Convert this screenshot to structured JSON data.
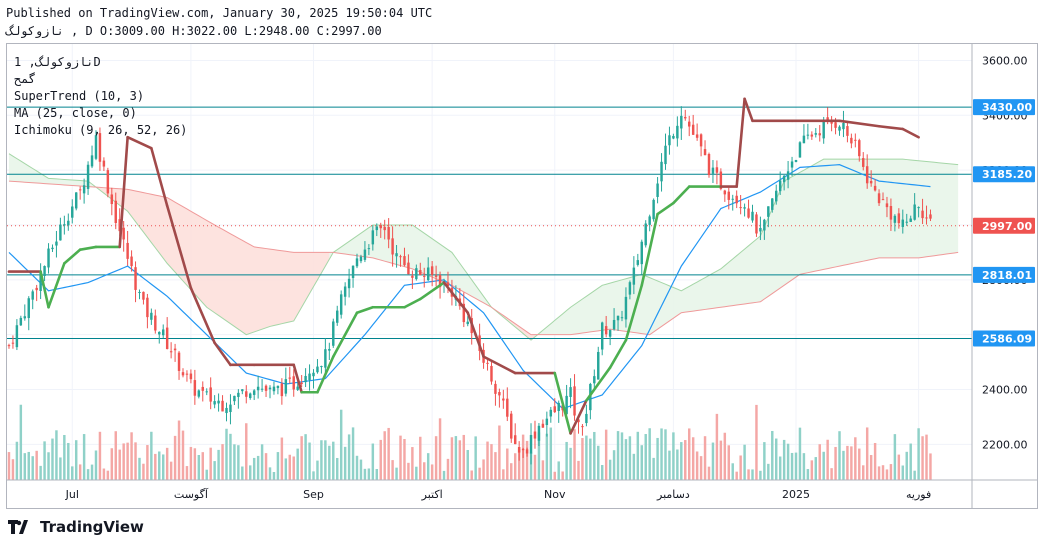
{
  "header": {
    "published": "Published on TradingView.com, January 30, 2025 19:50:04 UTC",
    "symbol_line": "نازوکولگ , D O:3009.00 H:3022.00 L:2948.00 C:2997.00"
  },
  "legend": {
    "symbol": "نازوکولگ, 1D",
    "sub": "گمح",
    "indicators": [
      "SuperTrend (10, 3)",
      "MA (25, close, 0)",
      "Ichimoku (9, 26, 52, 26)"
    ]
  },
  "brand": {
    "name": "TradingView"
  },
  "colors": {
    "up": "#26a69a",
    "down": "#ef5350",
    "vol_up": "#8fd1c8",
    "vol_down": "#f4a7a5",
    "supertrend_up": "#4caf50",
    "supertrend_down": "#a14a4a",
    "ma": "#2196f3",
    "level_line": "#00838f",
    "level_label": "#2196f3",
    "price_label": "#ef5350",
    "cloud_bull": "#e8f5e9",
    "cloud_bear": "#fde0dc"
  },
  "chart_data": {
    "type": "candlestick",
    "timeframe": "1D",
    "ylim": [
      2070,
      3660
    ],
    "y_ticks": [
      2200,
      2400,
      2600,
      2800,
      3000,
      3200,
      3400,
      3600
    ],
    "x_ticks": [
      {
        "label": "Jul",
        "bar": 16
      },
      {
        "label": "آگوست",
        "bar": 46
      },
      {
        "label": "Sep",
        "bar": 77
      },
      {
        "label": "اکتبر",
        "bar": 107
      },
      {
        "label": "Nov",
        "bar": 138
      },
      {
        "label": "دسامبر",
        "bar": 168
      },
      {
        "label": "2025",
        "bar": 199
      },
      {
        "label": "فوریه",
        "bar": 230
      }
    ],
    "bars_total": 244,
    "level_lines": [
      {
        "value": 3430.0,
        "label": "3430.00"
      },
      {
        "value": 3185.2,
        "label": "3185.20"
      },
      {
        "value": 2818.01,
        "label": "2818.01"
      },
      {
        "value": 2586.09,
        "label": "2586.09"
      }
    ],
    "last_price": {
      "value": 2997.0,
      "label": "2997.00"
    },
    "close_path": [
      [
        0,
        2560
      ],
      [
        8,
        2820
      ],
      [
        14,
        3020
      ],
      [
        18,
        3120
      ],
      [
        22,
        3320
      ],
      [
        26,
        3080
      ],
      [
        30,
        2880
      ],
      [
        34,
        2700
      ],
      [
        38,
        2620
      ],
      [
        42,
        2520
      ],
      [
        46,
        2410
      ],
      [
        50,
        2370
      ],
      [
        54,
        2350
      ],
      [
        58,
        2380
      ],
      [
        62,
        2420
      ],
      [
        66,
        2390
      ],
      [
        72,
        2420
      ],
      [
        76,
        2480
      ],
      [
        80,
        2520
      ],
      [
        84,
        2720
      ],
      [
        88,
        2880
      ],
      [
        92,
        2960
      ],
      [
        95,
        2990
      ],
      [
        98,
        2880
      ],
      [
        102,
        2830
      ],
      [
        108,
        2810
      ],
      [
        112,
        2760
      ],
      [
        116,
        2640
      ],
      [
        120,
        2510
      ],
      [
        124,
        2380
      ],
      [
        128,
        2200
      ],
      [
        130,
        2170
      ],
      [
        134,
        2270
      ],
      [
        138,
        2320
      ],
      [
        142,
        2380
      ],
      [
        144,
        2260
      ],
      [
        146,
        2320
      ],
      [
        150,
        2620
      ],
      [
        154,
        2640
      ],
      [
        158,
        2820
      ],
      [
        162,
        3060
      ],
      [
        166,
        3280
      ],
      [
        170,
        3420
      ],
      [
        174,
        3300
      ],
      [
        178,
        3180
      ],
      [
        182,
        3120
      ],
      [
        186,
        3080
      ],
      [
        190,
        2960
      ],
      [
        194,
        3120
      ],
      [
        198,
        3240
      ],
      [
        202,
        3320
      ],
      [
        206,
        3360
      ],
      [
        210,
        3380
      ],
      [
        214,
        3280
      ],
      [
        218,
        3140
      ],
      [
        222,
        3060
      ],
      [
        226,
        2990
      ],
      [
        230,
        3080
      ],
      [
        233,
        2997
      ]
    ],
    "ma_25": [
      [
        0,
        2900
      ],
      [
        10,
        2760
      ],
      [
        20,
        2790
      ],
      [
        30,
        2850
      ],
      [
        40,
        2740
      ],
      [
        50,
        2600
      ],
      [
        60,
        2460
      ],
      [
        70,
        2420
      ],
      [
        80,
        2440
      ],
      [
        90,
        2600
      ],
      [
        100,
        2780
      ],
      [
        110,
        2800
      ],
      [
        120,
        2680
      ],
      [
        130,
        2470
      ],
      [
        140,
        2330
      ],
      [
        150,
        2380
      ],
      [
        160,
        2560
      ],
      [
        170,
        2850
      ],
      [
        180,
        3060
      ],
      [
        190,
        3120
      ],
      [
        200,
        3210
      ],
      [
        210,
        3220
      ],
      [
        220,
        3160
      ],
      [
        233,
        3140
      ]
    ],
    "supertrend": [
      [
        0,
        2830
      ],
      [
        8,
        2830
      ],
      [
        10,
        2700
      ],
      [
        14,
        2860
      ],
      [
        18,
        2910
      ],
      [
        22,
        2920
      ],
      [
        28,
        2920
      ],
      [
        30,
        3320
      ],
      [
        36,
        3280
      ],
      [
        40,
        3070
      ],
      [
        46,
        2770
      ],
      [
        52,
        2570
      ],
      [
        56,
        2490
      ],
      [
        62,
        2490
      ],
      [
        72,
        2490
      ],
      [
        74,
        2390
      ],
      [
        78,
        2390
      ],
      [
        82,
        2520
      ],
      [
        88,
        2680
      ],
      [
        92,
        2700
      ],
      [
        100,
        2700
      ],
      [
        104,
        2730
      ],
      [
        110,
        2790
      ],
      [
        116,
        2680
      ],
      [
        120,
        2520
      ],
      [
        128,
        2460
      ],
      [
        138,
        2460
      ],
      [
        142,
        2240
      ],
      [
        146,
        2360
      ],
      [
        152,
        2480
      ],
      [
        156,
        2580
      ],
      [
        160,
        2780
      ],
      [
        164,
        3040
      ],
      [
        168,
        3080
      ],
      [
        172,
        3140
      ],
      [
        180,
        3140
      ],
      [
        184,
        3140
      ],
      [
        186,
        3460
      ],
      [
        188,
        3380
      ],
      [
        198,
        3380
      ],
      [
        210,
        3380
      ],
      [
        220,
        3360
      ],
      [
        226,
        3350
      ],
      [
        230,
        3320
      ]
    ],
    "cloud_lead_a": [
      [
        0,
        3260
      ],
      [
        10,
        3170
      ],
      [
        20,
        3160
      ],
      [
        30,
        3050
      ],
      [
        40,
        2860
      ],
      [
        50,
        2700
      ],
      [
        60,
        2600
      ],
      [
        66,
        2630
      ],
      [
        72,
        2650
      ],
      [
        82,
        2900
      ],
      [
        92,
        3000
      ],
      [
        102,
        3000
      ],
      [
        112,
        2900
      ],
      [
        122,
        2700
      ],
      [
        132,
        2580
      ],
      [
        142,
        2700
      ],
      [
        150,
        2780
      ],
      [
        160,
        2820
      ],
      [
        170,
        2760
      ],
      [
        180,
        2840
      ],
      [
        190,
        2960
      ],
      [
        196,
        3160
      ],
      [
        206,
        3240
      ],
      [
        216,
        3240
      ],
      [
        226,
        3240
      ],
      [
        240,
        3220
      ]
    ],
    "cloud_lead_b": [
      [
        0,
        3160
      ],
      [
        10,
        3150
      ],
      [
        20,
        3140
      ],
      [
        30,
        3130
      ],
      [
        40,
        3100
      ],
      [
        52,
        3000
      ],
      [
        62,
        2920
      ],
      [
        72,
        2900
      ],
      [
        82,
        2900
      ],
      [
        92,
        2880
      ],
      [
        102,
        2840
      ],
      [
        112,
        2780
      ],
      [
        122,
        2700
      ],
      [
        132,
        2600
      ],
      [
        142,
        2600
      ],
      [
        152,
        2620
      ],
      [
        162,
        2600
      ],
      [
        170,
        2680
      ],
      [
        180,
        2700
      ],
      [
        190,
        2720
      ],
      [
        200,
        2820
      ],
      [
        210,
        2850
      ],
      [
        220,
        2880
      ],
      [
        230,
        2880
      ],
      [
        240,
        2900
      ]
    ]
  }
}
